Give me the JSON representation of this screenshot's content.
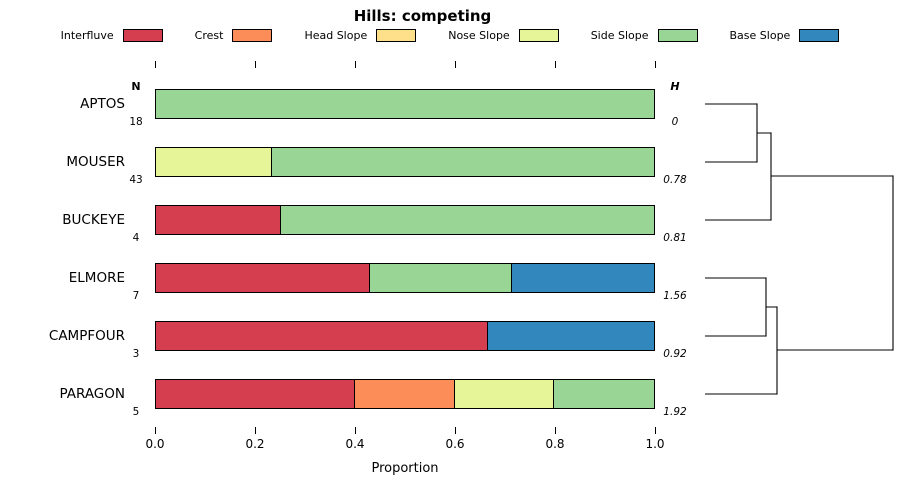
{
  "title": "Hills: competing",
  "legend": {
    "items": [
      {
        "label": "Interfluve",
        "color": "#D53E4F"
      },
      {
        "label": "Crest",
        "color": "#FC8D59"
      },
      {
        "label": "Head Slope",
        "color": "#FEE08B"
      },
      {
        "label": "Nose Slope",
        "color": "#E6F598"
      },
      {
        "label": "Side Slope",
        "color": "#99D594"
      },
      {
        "label": "Base Slope",
        "color": "#3288BD"
      }
    ]
  },
  "chart_data": {
    "type": "bar",
    "orientation": "horizontal",
    "stacked": true,
    "title": "Hills: competing",
    "xlabel": "Proportion",
    "xlim": [
      0,
      1
    ],
    "xtick_values": [
      0,
      0.2,
      0.4,
      0.6,
      0.8,
      1
    ],
    "xtick_labels": [
      "0.0",
      "0.2",
      "0.4",
      "0.6",
      "0.8",
      "1.0"
    ],
    "n_column_header": "N",
    "h_column_header": "H",
    "categories": [
      "APTOS",
      "MOUSER",
      "BUCKEYE",
      "ELMORE",
      "CAMPFOUR",
      "PARAGON"
    ],
    "rows": [
      {
        "name": "APTOS",
        "n": 18,
        "h": "0",
        "segments": [
          {
            "class": "Side Slope",
            "value": 1.0
          }
        ]
      },
      {
        "name": "MOUSER",
        "n": 43,
        "h": "0.78",
        "segments": [
          {
            "class": "Nose Slope",
            "value": 0.233
          },
          {
            "class": "Side Slope",
            "value": 0.767
          }
        ]
      },
      {
        "name": "BUCKEYE",
        "n": 4,
        "h": "0.81",
        "segments": [
          {
            "class": "Interfluve",
            "value": 0.25
          },
          {
            "class": "Side Slope",
            "value": 0.75
          }
        ]
      },
      {
        "name": "ELMORE",
        "n": 7,
        "h": "1.56",
        "segments": [
          {
            "class": "Interfluve",
            "value": 0.429
          },
          {
            "class": "Side Slope",
            "value": 0.286
          },
          {
            "class": "Base Slope",
            "value": 0.285
          }
        ]
      },
      {
        "name": "CAMPFOUR",
        "n": 3,
        "h": "0.92",
        "segments": [
          {
            "class": "Interfluve",
            "value": 0.667
          },
          {
            "class": "Base Slope",
            "value": 0.333
          }
        ]
      },
      {
        "name": "PARAGON",
        "n": 5,
        "h": "1.92",
        "segments": [
          {
            "class": "Interfluve",
            "value": 0.4
          },
          {
            "class": "Crest",
            "value": 0.2
          },
          {
            "class": "Nose Slope",
            "value": 0.2
          },
          {
            "class": "Side Slope",
            "value": 0.2
          }
        ]
      }
    ],
    "dendrogram": {
      "present": true,
      "leaf_order": [
        "APTOS",
        "MOUSER",
        "BUCKEYE",
        "ELMORE",
        "CAMPFOUR",
        "PARAGON"
      ],
      "merges": [
        {
          "members": [
            "APTOS",
            "MOUSER"
          ]
        },
        {
          "members": [
            "APTOS+MOUSER",
            "BUCKEYE"
          ]
        },
        {
          "members": [
            "ELMORE",
            "CAMPFOUR"
          ]
        },
        {
          "members": [
            "ELMORE+CAMPFOUR",
            "PARAGON"
          ]
        },
        {
          "members": [
            "APTOS+MOUSER+BUCKEYE",
            "ELMORE+CAMPFOUR+PARAGON"
          ]
        }
      ]
    }
  }
}
